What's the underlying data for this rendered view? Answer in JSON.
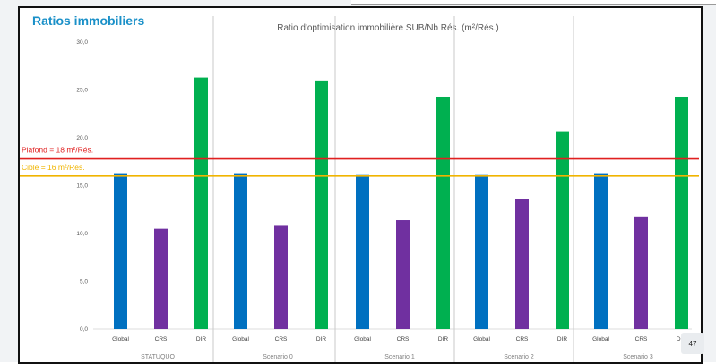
{
  "slide": {
    "section_title": "Ratios immobiliers",
    "page_number": "47"
  },
  "chart_data": {
    "type": "bar",
    "title": "Ratio d'optimisation immobilière SUB/Nb Rés. (m²/Rés.)",
    "ylim": [
      0,
      30
    ],
    "yticks": [
      "0,0",
      "5,0",
      "10,0",
      "15,0",
      "20,0",
      "25,0",
      "30,0"
    ],
    "grid": false,
    "groups": [
      {
        "label": "STATUQUO",
        "categories": [
          "Global",
          "CRS",
          "DIR"
        ],
        "values": [
          16.3,
          10.5,
          26.3
        ]
      },
      {
        "label": "Scenario 0",
        "categories": [
          "Global",
          "CRS",
          "DIR"
        ],
        "values": [
          16.3,
          10.8,
          25.9
        ]
      },
      {
        "label": "Scenario 1",
        "categories": [
          "Global",
          "CRS",
          "DIR"
        ],
        "values": [
          16.1,
          11.4,
          24.3
        ]
      },
      {
        "label": "Scenario 2",
        "categories": [
          "Global",
          "CRS",
          "DIR"
        ],
        "values": [
          16.1,
          13.6,
          20.6
        ]
      },
      {
        "label": "Scenario 3",
        "categories": [
          "Global",
          "CRS",
          "DIR"
        ],
        "values": [
          16.3,
          11.7,
          24.3
        ]
      }
    ],
    "category_colors": {
      "Global": "#0070c0",
      "CRS": "#7030a0",
      "DIR": "#00b050"
    },
    "reference_lines": [
      {
        "label": "Plafond = 18 m²/Rés.",
        "value": 17.8,
        "color": "#e02020"
      },
      {
        "label": "Cible = 16 m²/Rés.",
        "value": 16.0,
        "color": "#f0b400"
      }
    ]
  }
}
